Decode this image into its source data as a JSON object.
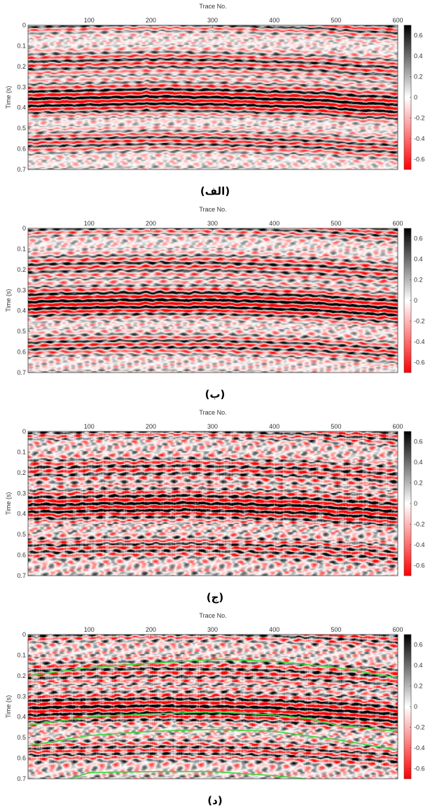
{
  "chart_data": [
    {
      "type": "heatmap",
      "caption": "(الف)",
      "xlabel": "Trace No.",
      "ylabel": "Time (s)",
      "xlim": [
        1,
        600
      ],
      "ylim": [
        0.7,
        0
      ],
      "x_ticks": [
        "100",
        "200",
        "300",
        "400",
        "500",
        "600"
      ],
      "y_ticks": [
        "0",
        "0.1",
        "0.2",
        "0.3",
        "0.4",
        "0.5",
        "0.6",
        "0.7"
      ],
      "colorbar": {
        "range": [
          -0.7,
          0.7
        ],
        "ticks": [
          "0.6",
          "0.4",
          "0.2",
          "0",
          "-0.2",
          "-0.4",
          "-0.6"
        ],
        "colors": [
          "#ff0000",
          "#ffffff",
          "#000000"
        ]
      },
      "noise": 0.35,
      "vertical_stripes": false,
      "green_horizons": []
    },
    {
      "type": "heatmap",
      "caption": "(ب)",
      "xlabel": "Trace No.",
      "ylabel": "Time (s)",
      "xlim": [
        1,
        600
      ],
      "ylim": [
        0.7,
        0
      ],
      "x_ticks": [
        "100",
        "200",
        "300",
        "400",
        "500",
        "600"
      ],
      "y_ticks": [
        "0",
        "0.1",
        "0.2",
        "0.3",
        "0.4",
        "0.5",
        "0.6",
        "0.7"
      ],
      "colorbar": {
        "range": [
          -0.7,
          0.7
        ],
        "ticks": [
          "0.6",
          "0.4",
          "0.2",
          "0",
          "-0.2",
          "-0.4",
          "-0.6"
        ],
        "colors": [
          "#ff0000",
          "#ffffff",
          "#000000"
        ]
      },
      "noise": 0.4,
      "vertical_stripes": false,
      "green_horizons": []
    },
    {
      "type": "heatmap",
      "caption": "(ج)",
      "xlabel": "Trace No.",
      "ylabel": "Time (s)",
      "xlim": [
        1,
        600
      ],
      "ylim": [
        0.7,
        0
      ],
      "x_ticks": [
        "100",
        "200",
        "300",
        "400",
        "500",
        "600"
      ],
      "y_ticks": [
        "0",
        "0.1",
        "0.2",
        "0.3",
        "0.4",
        "0.5",
        "0.6",
        "0.7"
      ],
      "colorbar": {
        "range": [
          -0.7,
          0.7
        ],
        "ticks": [
          "0.6",
          "0.4",
          "0.2",
          "0",
          "-0.2",
          "-0.4",
          "-0.6"
        ],
        "colors": [
          "#ff0000",
          "#ffffff",
          "#000000"
        ]
      },
      "noise": 0.55,
      "vertical_stripes": true,
      "green_horizons": []
    },
    {
      "type": "heatmap",
      "caption": "(د)",
      "xlabel": "Trace No.",
      "ylabel": "Time (s)",
      "xlim": [
        1,
        600
      ],
      "ylim": [
        0.7,
        0
      ],
      "x_ticks": [
        "100",
        "200",
        "300",
        "400",
        "500",
        "600"
      ],
      "y_ticks": [
        "0",
        "0.1",
        "0.2",
        "0.3",
        "0.4",
        "0.5",
        "0.6",
        "0.7"
      ],
      "colorbar": {
        "range": [
          -0.7,
          0.7
        ],
        "ticks": [
          "0.6",
          "0.4",
          "0.2",
          "0",
          "-0.2",
          "-0.4",
          "-0.6"
        ],
        "colors": [
          "#ff0000",
          "#ffffff",
          "#000000"
        ]
      },
      "noise": 0.55,
      "vertical_stripes": true,
      "green_horizons": [
        {
          "x": [
            1,
            100,
            200,
            310,
            400,
            500,
            600
          ],
          "y": [
            0.2,
            0.16,
            0.14,
            0.12,
            0.13,
            0.16,
            0.21
          ]
        },
        {
          "x": [
            1,
            100,
            200,
            300,
            400,
            460,
            500,
            600
          ],
          "y": [
            0.44,
            0.4,
            0.385,
            0.375,
            0.39,
            0.41,
            0.44,
            0.47
          ]
        },
        {
          "x": [
            1,
            100,
            200,
            300,
            400,
            500,
            600
          ],
          "y": [
            0.54,
            0.49,
            0.47,
            0.46,
            0.47,
            0.51,
            0.56
          ]
        },
        {
          "x": [
            70,
            100,
            200,
            300,
            400,
            450
          ],
          "y": [
            0.7,
            0.67,
            0.665,
            0.665,
            0.685,
            0.7
          ]
        }
      ]
    }
  ],
  "colors": {
    "positive": "#000000",
    "negative": "#ff0000",
    "zero": "#ffffff",
    "horizon": "#3bd63b"
  }
}
